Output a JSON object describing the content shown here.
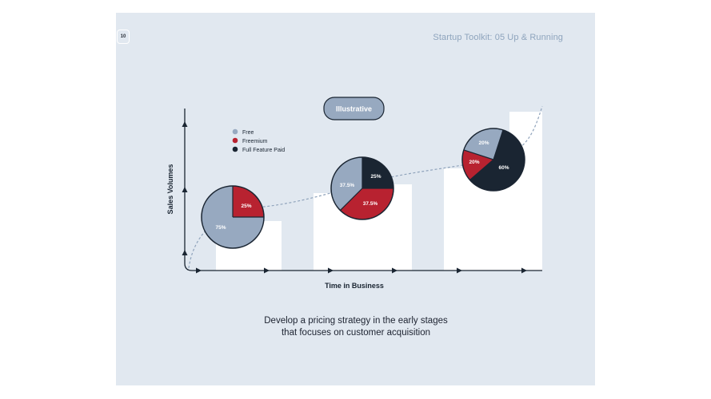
{
  "header": {
    "page_number": "10",
    "title": "Startup Toolkit: 05 Up & Running"
  },
  "diagram": {
    "badge": "Illustrative",
    "y_axis_label": "Sales Volumes",
    "x_axis_label": "Time in Business",
    "legend": [
      {
        "label": "Free",
        "color": "#97a9c0"
      },
      {
        "label": "Freemium",
        "color": "#b82230"
      },
      {
        "label": "Full Feature Paid",
        "color": "#1a2532"
      }
    ],
    "pies": [
      {
        "free": "75%",
        "freemium": "25%",
        "paid": ""
      },
      {
        "free": "37.5%",
        "freemium": "37.5%",
        "paid": "25%"
      },
      {
        "free": "20%",
        "freemium": "20%",
        "paid": "60%"
      }
    ]
  },
  "caption": {
    "line1": "Develop a pricing strategy in the early stages",
    "line2": "that focuses on customer acquisition"
  },
  "colors": {
    "background": "#e1e8f0",
    "free": "#97a9c0",
    "freemium": "#b82230",
    "paid": "#1a2532",
    "curve": "#8fa3bb"
  }
}
